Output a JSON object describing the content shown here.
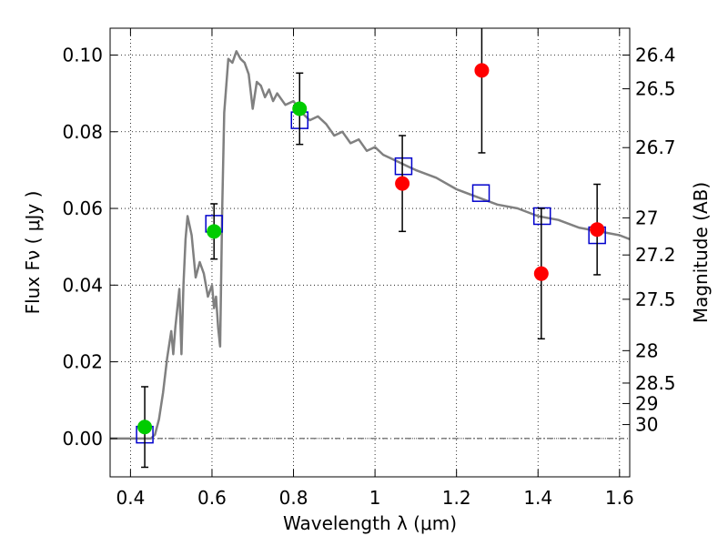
{
  "chart_data": {
    "type": "scatter",
    "xlabel": "Wavelength  λ (μm)",
    "ylabel": "Flux  Fν  ( μJy )",
    "y2label": "Magnitude (AB)",
    "xlim": [
      0.35,
      1.625
    ],
    "ylim": [
      -0.01,
      0.107
    ],
    "x_ticks": [
      0.4,
      0.6,
      0.8,
      1.0,
      1.2,
      1.4,
      1.6
    ],
    "x_tick_labels": [
      "0.4",
      "0.6",
      "0.8",
      "1",
      "1.2",
      "1.4",
      "1.6"
    ],
    "y_ticks": [
      0.0,
      0.02,
      0.04,
      0.06,
      0.08,
      0.1
    ],
    "y_tick_labels": [
      "0.00",
      "0.02",
      "0.04",
      "0.06",
      "0.08",
      "0.10"
    ],
    "mag_ticks": [
      26.4,
      26.5,
      26.7,
      27,
      27.2,
      27.5,
      28,
      28.5,
      29,
      30
    ],
    "mag_tick_labels": [
      "26.4",
      "26.5",
      "26.7",
      "27",
      "27.2",
      "27.5",
      "28",
      "28.5",
      "29",
      "30"
    ],
    "grid": true,
    "zero_line": true,
    "colors": {
      "model": "#808080",
      "optical_points": "#00cc00",
      "nir_points": "#ff0000",
      "model_boxes": "#0000cc",
      "errorbar": "#000000"
    },
    "series": [
      {
        "type": "line",
        "x": [
          0.35,
          0.4,
          0.45,
          0.46,
          0.47,
          0.48,
          0.49,
          0.5,
          0.505,
          0.51,
          0.515,
          0.52,
          0.525,
          0.53,
          0.535,
          0.54,
          0.55,
          0.56,
          0.57,
          0.58,
          0.59,
          0.6,
          0.605,
          0.61,
          0.615,
          0.62,
          0.625,
          0.63,
          0.64,
          0.65,
          0.66,
          0.67,
          0.68,
          0.69,
          0.7,
          0.71,
          0.72,
          0.73,
          0.74,
          0.75,
          0.76,
          0.78,
          0.8,
          0.82,
          0.84,
          0.86,
          0.88,
          0.9,
          0.92,
          0.94,
          0.96,
          0.98,
          1.0,
          1.02,
          1.04,
          1.06,
          1.08,
          1.1,
          1.15,
          1.2,
          1.25,
          1.3,
          1.35,
          1.4,
          1.45,
          1.5,
          1.55,
          1.6,
          1.625
        ],
        "y": [
          0.0,
          0.0,
          0.0,
          0.001,
          0.005,
          0.012,
          0.021,
          0.028,
          0.022,
          0.029,
          0.034,
          0.039,
          0.022,
          0.04,
          0.052,
          0.058,
          0.053,
          0.042,
          0.046,
          0.043,
          0.037,
          0.04,
          0.034,
          0.037,
          0.029,
          0.024,
          0.06,
          0.085,
          0.099,
          0.098,
          0.101,
          0.099,
          0.098,
          0.095,
          0.086,
          0.093,
          0.092,
          0.089,
          0.091,
          0.088,
          0.09,
          0.087,
          0.088,
          0.085,
          0.083,
          0.084,
          0.082,
          0.079,
          0.08,
          0.077,
          0.078,
          0.075,
          0.076,
          0.074,
          0.073,
          0.072,
          0.071,
          0.07,
          0.068,
          0.065,
          0.063,
          0.061,
          0.06,
          0.058,
          0.057,
          0.055,
          0.054,
          0.053,
          0.052
        ]
      },
      {
        "type": "scatter",
        "marker": "square",
        "x": [
          0.435,
          0.605,
          0.815,
          1.07,
          1.26,
          1.41,
          1.545
        ],
        "y": [
          0.001,
          0.056,
          0.083,
          0.071,
          0.064,
          0.058,
          0.053
        ]
      },
      {
        "type": "scatter",
        "marker": "circle",
        "x": [
          0.435,
          0.605,
          0.815
        ],
        "y": [
          0.003,
          0.054,
          0.086
        ],
        "yerr": [
          0.0105,
          0.0072,
          0.0093
        ]
      },
      {
        "type": "scatter",
        "marker": "circle",
        "x": [
          1.067,
          1.262,
          1.408,
          1.545
        ],
        "y": [
          0.0665,
          0.096,
          0.043,
          0.0545
        ],
        "yerr": [
          0.0125,
          0.0215,
          0.017,
          0.0118
        ]
      }
    ]
  }
}
